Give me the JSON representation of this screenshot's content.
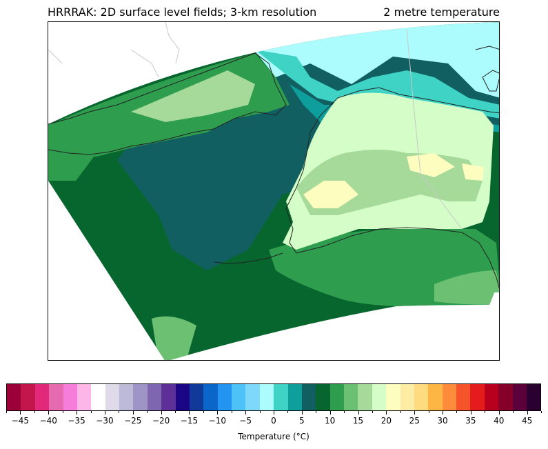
{
  "header": {
    "left_title": "HRRRAK: 2D surface level fields; 3-km resolution",
    "right_title": "2 metre temperature"
  },
  "colorbar": {
    "label": "Temperature (°C)",
    "min": -47.5,
    "max": 47.5,
    "step": 2.5,
    "tick_values": [
      -45,
      -40,
      -35,
      -30,
      -25,
      -20,
      -15,
      -10,
      -5,
      0,
      5,
      10,
      15,
      20,
      25,
      30,
      35,
      40,
      45
    ],
    "tick_labels": [
      "−45",
      "−40",
      "−35",
      "−30",
      "−25",
      "−20",
      "−15",
      "−10",
      "−5",
      "0",
      "5",
      "10",
      "15",
      "20",
      "25",
      "30",
      "35",
      "40",
      "45"
    ],
    "colors": [
      "#9c0038",
      "#c3164d",
      "#e1287a",
      "#e66ab0",
      "#f77ddb",
      "#fdb6e8",
      "#ffffff",
      "#dedaea",
      "#bcb9d9",
      "#9e95c6",
      "#7e66b0",
      "#5e2f96",
      "#1a0685",
      "#0f3a9a",
      "#0a66c9",
      "#2394f2",
      "#4cc2f6",
      "#7ed8fb",
      "#acfbfd",
      "#3fd3c6",
      "#0e9e9c",
      "#125f62",
      "#07662d",
      "#2f9d4e",
      "#6bc071",
      "#a6da9a",
      "#d5fdc8",
      "#fefdc0",
      "#fdeca3",
      "#fedb81",
      "#fdb644",
      "#fc8c3c",
      "#f5542b",
      "#e41c1b",
      "#b8001e",
      "#850129",
      "#5c003b",
      "#2a0031"
    ]
  },
  "map": {
    "region": "Alaska",
    "ocean_color": "#07662d",
    "colors": {
      "cold_sea": "#125f62",
      "mild_sea": "#2f9d4e",
      "warm_sea": "#6bc071",
      "ice_light": "#acfbfd",
      "ice_mid": "#3fd3c6",
      "ice_dark": "#0e9e9c",
      "land_warm": "#a6da9a",
      "land_hot": "#fefdc0",
      "land_mid": "#d5fdc8",
      "coast": "#222222",
      "border": "#c8c8c8"
    }
  }
}
